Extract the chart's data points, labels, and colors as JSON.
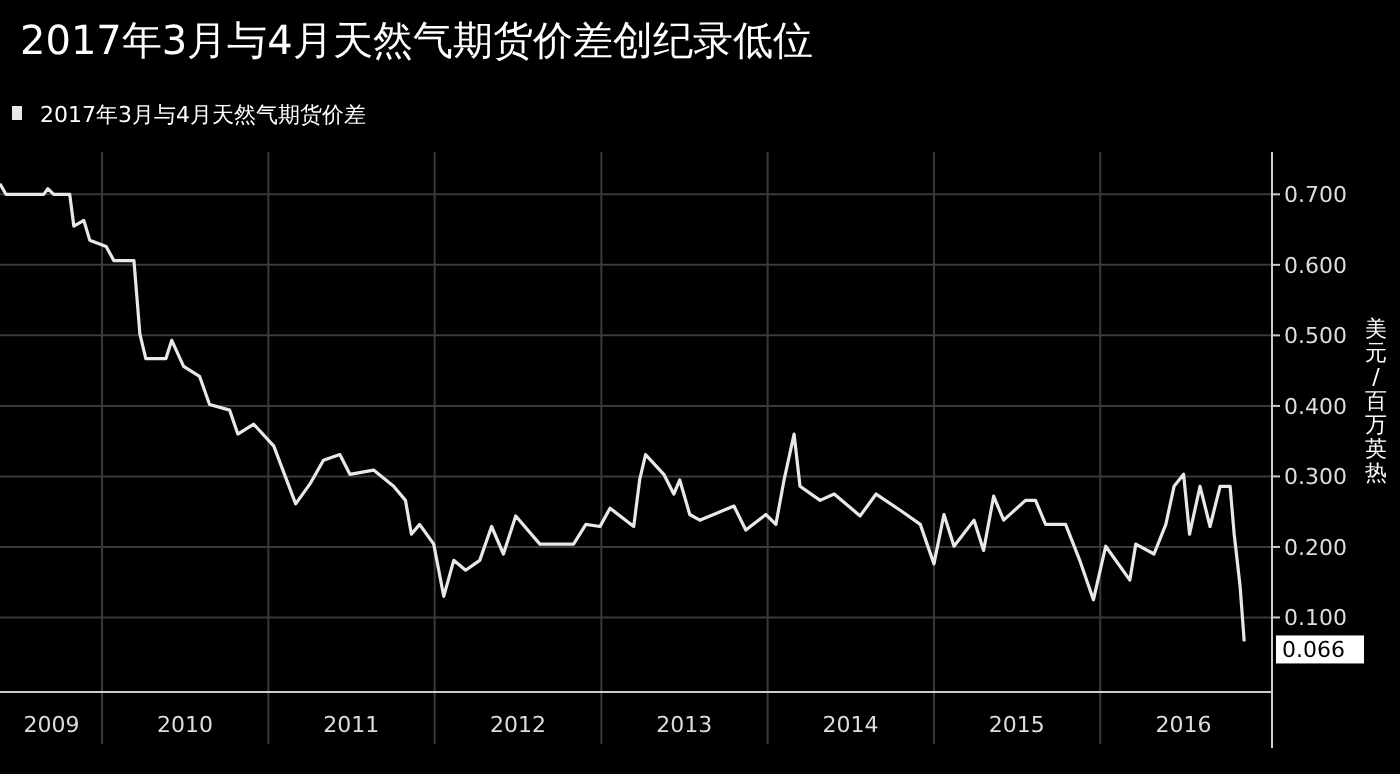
{
  "chart_data": {
    "type": "line",
    "title": "2017年3月与4月天然气期货价差创纪录低位",
    "ylabel": "美元/百万英热",
    "legend": "top left",
    "grid": true,
    "x": [
      "2009-05-22",
      "2009-06-04",
      "2009-08-26",
      "2009-09-04",
      "2009-09-17",
      "2009-10-22",
      "2009-10-31",
      "2009-11-22",
      "2009-12-05",
      "2010-01-10",
      "2010-01-27",
      "2010-03-12",
      "2010-03-25",
      "2010-04-07",
      "2010-05-21",
      "2010-06-03",
      "2010-06-29",
      "2010-08-03",
      "2010-08-25",
      "2010-10-08",
      "2010-10-26",
      "2010-11-30",
      "2011-01-13",
      "2011-03-02",
      "2011-04-02",
      "2011-05-02",
      "2011-06-07",
      "2011-06-29",
      "2011-08-20",
      "2011-10-03",
      "2011-10-29",
      "2011-11-11",
      "2011-11-29",
      "2011-12-30",
      "2012-01-21",
      "2012-02-12",
      "2012-03-09",
      "2012-04-09",
      "2012-05-05",
      "2012-05-31",
      "2012-06-27",
      "2012-08-19",
      "2012-11-01",
      "2012-11-28",
      "2012-12-29",
      "2013-01-20",
      "2013-03-13",
      "2013-03-26",
      "2013-04-08",
      "2013-05-18",
      "2013-06-09",
      "2013-06-22",
      "2013-07-14",
      "2013-08-05",
      "2013-10-19",
      "2013-11-14",
      "2013-12-28",
      "2014-01-19",
      "2014-02-06",
      "2014-02-28",
      "2014-03-13",
      "2014-04-26",
      "2014-05-27",
      "2014-07-23",
      "2014-08-27",
      "2014-10-19",
      "2014-12-02",
      "2015-01-01",
      "2015-01-23",
      "2015-02-14",
      "2015-03-30",
      "2015-04-20",
      "2015-05-12",
      "2015-06-03",
      "2015-07-21",
      "2015-08-12",
      "2015-09-03",
      "2015-10-17",
      "2015-11-17",
      "2015-12-17",
      "2016-01-13",
      "2016-03-06",
      "2016-03-19",
      "2016-04-28",
      "2016-05-24",
      "2016-06-11",
      "2016-07-02",
      "2016-07-15",
      "2016-08-07",
      "2016-08-29",
      "2016-09-20",
      "2016-10-12",
      "2016-10-21",
      "2016-11-03",
      "2016-11-12"
    ],
    "series": [
      {
        "name": "2017年3月与4月天然气期货价差",
        "color": "#e8e8e8",
        "values": [
          0.715,
          0.7,
          0.7,
          0.708,
          0.7,
          0.7,
          0.655,
          0.663,
          0.635,
          0.626,
          0.606,
          0.606,
          0.502,
          0.467,
          0.467,
          0.493,
          0.456,
          0.442,
          0.402,
          0.394,
          0.36,
          0.374,
          0.343,
          0.261,
          0.289,
          0.323,
          0.331,
          0.303,
          0.309,
          0.286,
          0.266,
          0.218,
          0.232,
          0.204,
          0.13,
          0.181,
          0.167,
          0.181,
          0.229,
          0.19,
          0.244,
          0.204,
          0.204,
          0.232,
          0.229,
          0.255,
          0.229,
          0.295,
          0.331,
          0.303,
          0.275,
          0.295,
          0.246,
          0.238,
          0.258,
          0.224,
          0.246,
          0.232,
          0.295,
          0.36,
          0.286,
          0.266,
          0.275,
          0.244,
          0.275,
          0.252,
          0.232,
          0.176,
          0.246,
          0.201,
          0.238,
          0.195,
          0.272,
          0.238,
          0.266,
          0.266,
          0.232,
          0.232,
          0.181,
          0.125,
          0.201,
          0.153,
          0.204,
          0.19,
          0.232,
          0.286,
          0.303,
          0.218,
          0.286,
          0.229,
          0.286,
          0.286,
          0.218,
          0.144,
          0.066
        ]
      }
    ],
    "xlim": [
      "2009-05-22",
      "2017-01-12"
    ],
    "xticks": [
      {
        "value": "2009-09-12",
        "label": "2009"
      },
      {
        "value": "2010-01-01",
        "label": null
      },
      {
        "value": "2010-07-02",
        "label": "2010"
      },
      {
        "value": "2011-01-01",
        "label": null
      },
      {
        "value": "2011-07-02",
        "label": "2011"
      },
      {
        "value": "2012-01-01",
        "label": null
      },
      {
        "value": "2012-07-02",
        "label": "2012"
      },
      {
        "value": "2013-01-01",
        "label": null
      },
      {
        "value": "2013-07-02",
        "label": "2013"
      },
      {
        "value": "2014-01-01",
        "label": null
      },
      {
        "value": "2014-07-02",
        "label": "2014"
      },
      {
        "value": "2015-01-01",
        "label": null
      },
      {
        "value": "2015-07-02",
        "label": "2015"
      },
      {
        "value": "2016-01-01",
        "label": null
      },
      {
        "value": "2016-07-02",
        "label": "2016"
      }
    ],
    "ylim": [
      0,
      0.76
    ],
    "yticks": [
      {
        "value": 0.1,
        "label": "0.100"
      },
      {
        "value": 0.2,
        "label": "0.200"
      },
      {
        "value": 0.3,
        "label": "0.300"
      },
      {
        "value": 0.4,
        "label": "0.400"
      },
      {
        "value": 0.5,
        "label": "0.500"
      },
      {
        "value": 0.6,
        "label": "0.600"
      },
      {
        "value": 0.7,
        "label": "0.700"
      }
    ],
    "annotations": [
      {
        "text": "0.066",
        "x": "2016-11-12",
        "y": 0.066
      }
    ]
  }
}
